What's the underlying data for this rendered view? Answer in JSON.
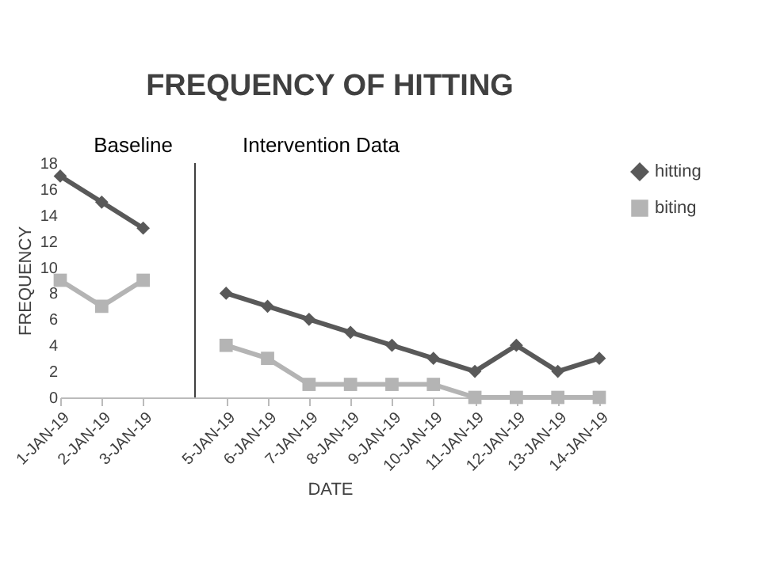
{
  "chart_data": {
    "type": "line",
    "title": "FREQUENCY OF HITTING",
    "xlabel": "DATE",
    "ylabel": "FREQUENCY",
    "x": [
      "--01-01",
      "--01-02",
      "--01-03",
      "--01-04",
      "--01-05",
      "--01-06",
      "--01-07",
      "--01-08",
      "--01-09",
      "--01-10",
      "--01-11",
      "--01-12",
      "--01-13",
      "--01-14"
    ],
    "series": [
      {
        "name": "hitting",
        "color": "#595959",
        "marker": "diamond",
        "values": [
          17,
          15,
          13,
          null,
          8,
          7,
          6,
          5,
          4,
          3,
          2,
          4,
          2,
          3
        ]
      },
      {
        "name": "biting",
        "color": "#b4b4b4",
        "marker": "square",
        "values": [
          9,
          7,
          9,
          null,
          4,
          3,
          1,
          1,
          1,
          1,
          0,
          0,
          0,
          0
        ]
      }
    ],
    "xlim": [
      "--01-01",
      "--01-14"
    ],
    "xticks": [
      {
        "value": "--01-01",
        "label": "1-JAN-19"
      },
      {
        "value": "--01-02",
        "label": "2-JAN-19"
      },
      {
        "value": "--01-03",
        "label": "3-JAN-19"
      },
      {
        "value": "--01-05",
        "label": "5-JAN-19"
      },
      {
        "value": "--01-06",
        "label": "6-JAN-19"
      },
      {
        "value": "--01-07",
        "label": "7-JAN-19"
      },
      {
        "value": "--01-08",
        "label": "8-JAN-19"
      },
      {
        "value": "--01-09",
        "label": "9-JAN-19"
      },
      {
        "value": "--01-10",
        "label": "10-JAN-19"
      },
      {
        "value": "--01-11",
        "label": "11-JAN-19"
      },
      {
        "value": "--01-12",
        "label": "12-JAN-19"
      },
      {
        "value": "--01-13",
        "label": "13-JAN-19"
      },
      {
        "value": "--01-14",
        "label": "14-JAN-19"
      }
    ],
    "ylim": [
      0,
      18
    ],
    "yticks": [
      0,
      2,
      4,
      6,
      8,
      10,
      12,
      14,
      16,
      18
    ],
    "grid": false,
    "legend": "right",
    "line_style": "solid",
    "ref_lines": [
      {
        "axis": "x",
        "value": "--01-04T06:00",
        "color": "#404040"
      }
    ],
    "annotations": [
      "Baseline",
      "Intervention Data"
    ]
  }
}
